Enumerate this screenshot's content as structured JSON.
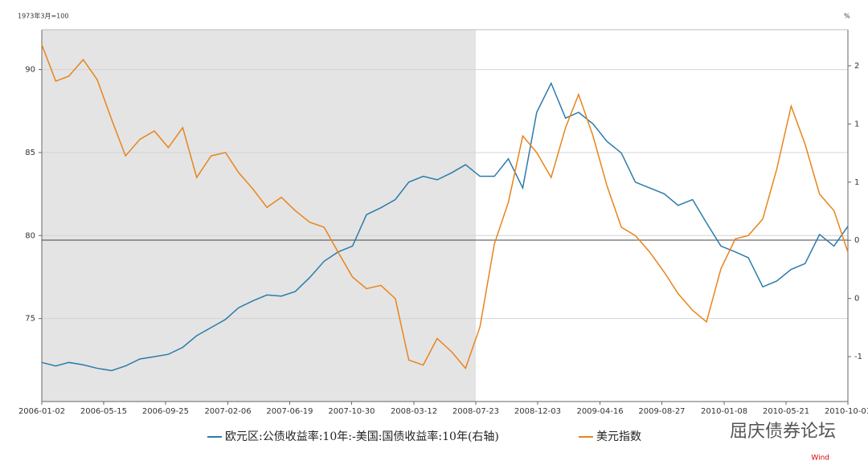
{
  "chart_data": {
    "type": "line",
    "left_axis_label": "1973年3月=100",
    "right_axis_label": "%",
    "x": [
      "2006-01-02",
      "2006-02-01",
      "2006-03-01",
      "2006-04-01",
      "2006-05-01",
      "2006-06-01",
      "2006-07-01",
      "2006-08-01",
      "2006-09-01",
      "2006-10-01",
      "2006-11-01",
      "2006-12-01",
      "2007-01-01",
      "2007-02-01",
      "2007-03-01",
      "2007-04-01",
      "2007-05-01",
      "2007-06-01",
      "2007-07-01",
      "2007-08-01",
      "2007-09-01",
      "2007-10-01",
      "2007-11-01",
      "2007-12-01",
      "2008-01-01",
      "2008-02-01",
      "2008-03-01",
      "2008-04-01",
      "2008-05-01",
      "2008-06-01",
      "2008-07-01",
      "2008-08-01",
      "2008-09-01",
      "2008-10-01",
      "2008-11-01",
      "2008-12-01",
      "2009-01-01",
      "2009-02-01",
      "2009-03-01",
      "2009-04-01",
      "2009-05-01",
      "2009-06-01",
      "2009-07-01",
      "2009-08-01",
      "2009-09-01",
      "2009-10-01",
      "2009-11-01",
      "2009-12-01",
      "2010-01-01",
      "2010-02-01",
      "2010-03-01",
      "2010-04-01",
      "2010-05-01",
      "2010-06-01",
      "2010-07-01",
      "2010-08-01",
      "2010-09-01",
      "2010-10-01"
    ],
    "series": [
      {
        "name": "欧元区:公债收益率:10年:-美国:国债收益率:10年(右轴)",
        "color": "#2b7bab",
        "axis": "y2",
        "values": [
          -0.55,
          -0.58,
          -0.55,
          -0.57,
          -0.6,
          -0.62,
          -0.58,
          -0.52,
          -0.5,
          -0.48,
          -0.42,
          -0.32,
          -0.25,
          -0.18,
          -0.08,
          -0.02,
          0.03,
          0.02,
          0.06,
          0.18,
          0.32,
          0.4,
          0.45,
          0.72,
          0.78,
          0.85,
          1.0,
          1.05,
          1.02,
          1.08,
          1.15,
          1.05,
          1.05,
          1.2,
          0.95,
          1.6,
          1.85,
          1.55,
          1.6,
          1.5,
          1.35,
          1.25,
          1.0,
          0.95,
          0.9,
          0.8,
          0.85,
          0.65,
          0.45,
          0.4,
          0.35,
          0.1,
          0.15,
          0.25,
          0.3,
          0.55,
          0.45,
          0.62
        ]
      },
      {
        "name": "美元指数",
        "color": "#e8841c",
        "values": [
          91.5,
          89.3,
          89.6,
          90.6,
          89.4,
          87.0,
          84.8,
          85.8,
          86.3,
          85.3,
          86.5,
          83.5,
          84.8,
          85.0,
          83.8,
          82.8,
          81.7,
          82.3,
          81.5,
          80.8,
          80.5,
          79.0,
          77.5,
          76.8,
          77.0,
          76.2,
          72.5,
          72.2,
          73.8,
          73.0,
          72.0,
          74.5,
          79.5,
          82.0,
          86.0,
          85.0,
          83.5,
          86.5,
          88.5,
          86.0,
          83.0,
          80.5,
          80.0,
          79.0,
          77.8,
          76.5,
          75.5,
          74.8,
          78.0,
          79.8,
          80.0,
          81.0,
          84.0,
          87.8,
          85.5,
          82.5,
          81.5,
          79.0
        ]
      }
    ],
    "xlim": [
      "2006-01-02",
      "2010-10-01"
    ],
    "xticks": [
      "2006-01-02",
      "2006-05-15",
      "2006-09-25",
      "2007-02-06",
      "2007-06-19",
      "2007-10-30",
      "2008-03-12",
      "2008-07-23",
      "2008-12-03",
      "2009-04-16",
      "2009-08-27",
      "2010-01-08",
      "2010-05-21",
      "2010-10-01"
    ],
    "ylim": [
      70,
      92.4
    ],
    "yticks": [
      75,
      80,
      85,
      90
    ],
    "y2lim": [
      -0.886,
      2.31
    ],
    "y2ticks": [
      {
        "value": -0.5,
        "label": "-1"
      },
      {
        "value": 0,
        "label": "0"
      },
      {
        "value": 0.5,
        "label": "0"
      },
      {
        "value": 1,
        "label": "1"
      },
      {
        "value": 1.5,
        "label": "1"
      },
      {
        "value": 2,
        "label": "2"
      }
    ],
    "shaded_range": [
      "2006-01-02",
      "2008-07-23"
    ],
    "grid": true,
    "legend": "bottom",
    "watermark": "屈庆债券论坛",
    "source": "Wind"
  }
}
